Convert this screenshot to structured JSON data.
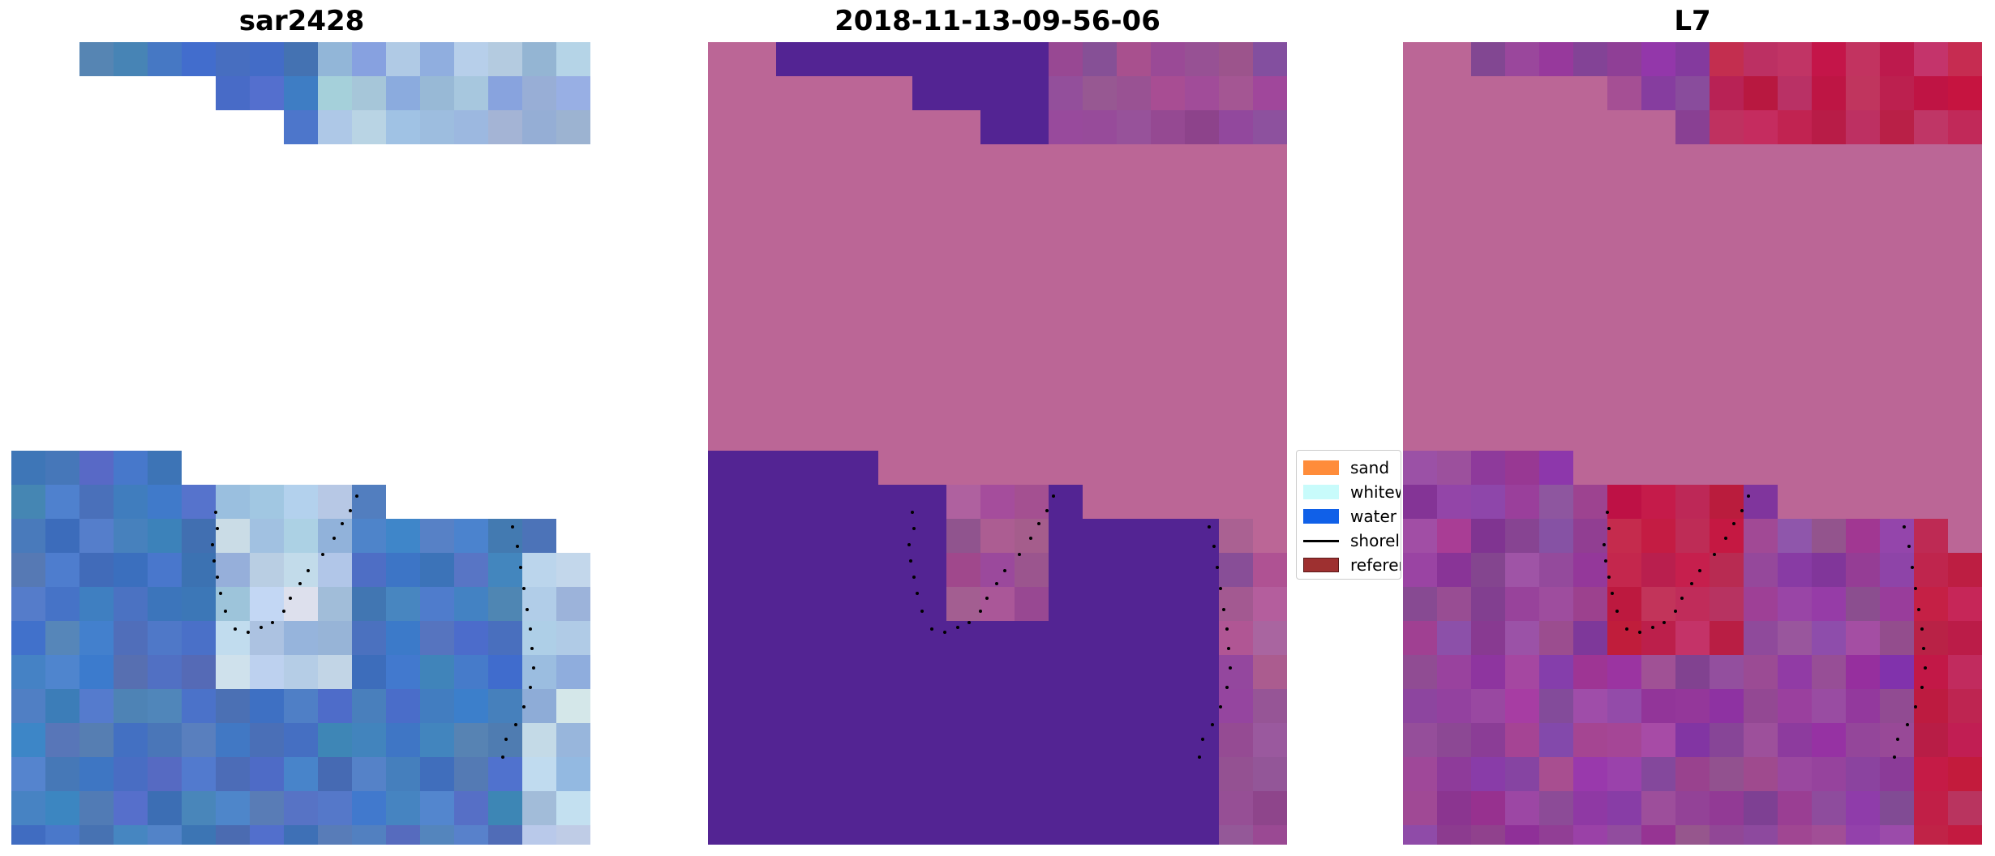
{
  "panels": [
    {
      "title": "sar2428"
    },
    {
      "title": "2018-11-13-09-56-06"
    },
    {
      "title": "L7"
    }
  ],
  "legend": {
    "items": [
      {
        "label": "sand",
        "color": "#ff8c3a",
        "kind": "patch"
      },
      {
        "label": "whitew",
        "color": "#c8fbfb",
        "kind": "patch"
      },
      {
        "label": "water",
        "color": "#1060e8",
        "kind": "patch"
      },
      {
        "label": "shorel",
        "color": "#000000",
        "kind": "line"
      },
      {
        "label": "referen",
        "color": "#9e3030",
        "kind": "patch"
      }
    ]
  },
  "colors": {
    "water_rgb": "#4a78c0",
    "whitewater_rgb": "#e0eef5",
    "land_class": "#bb6696",
    "water_class": "#532493",
    "l7_land": "#bb6696",
    "l7_water": "#8c3c9e",
    "l7_red": "#c0103a",
    "shoreline": "#000000"
  }
}
